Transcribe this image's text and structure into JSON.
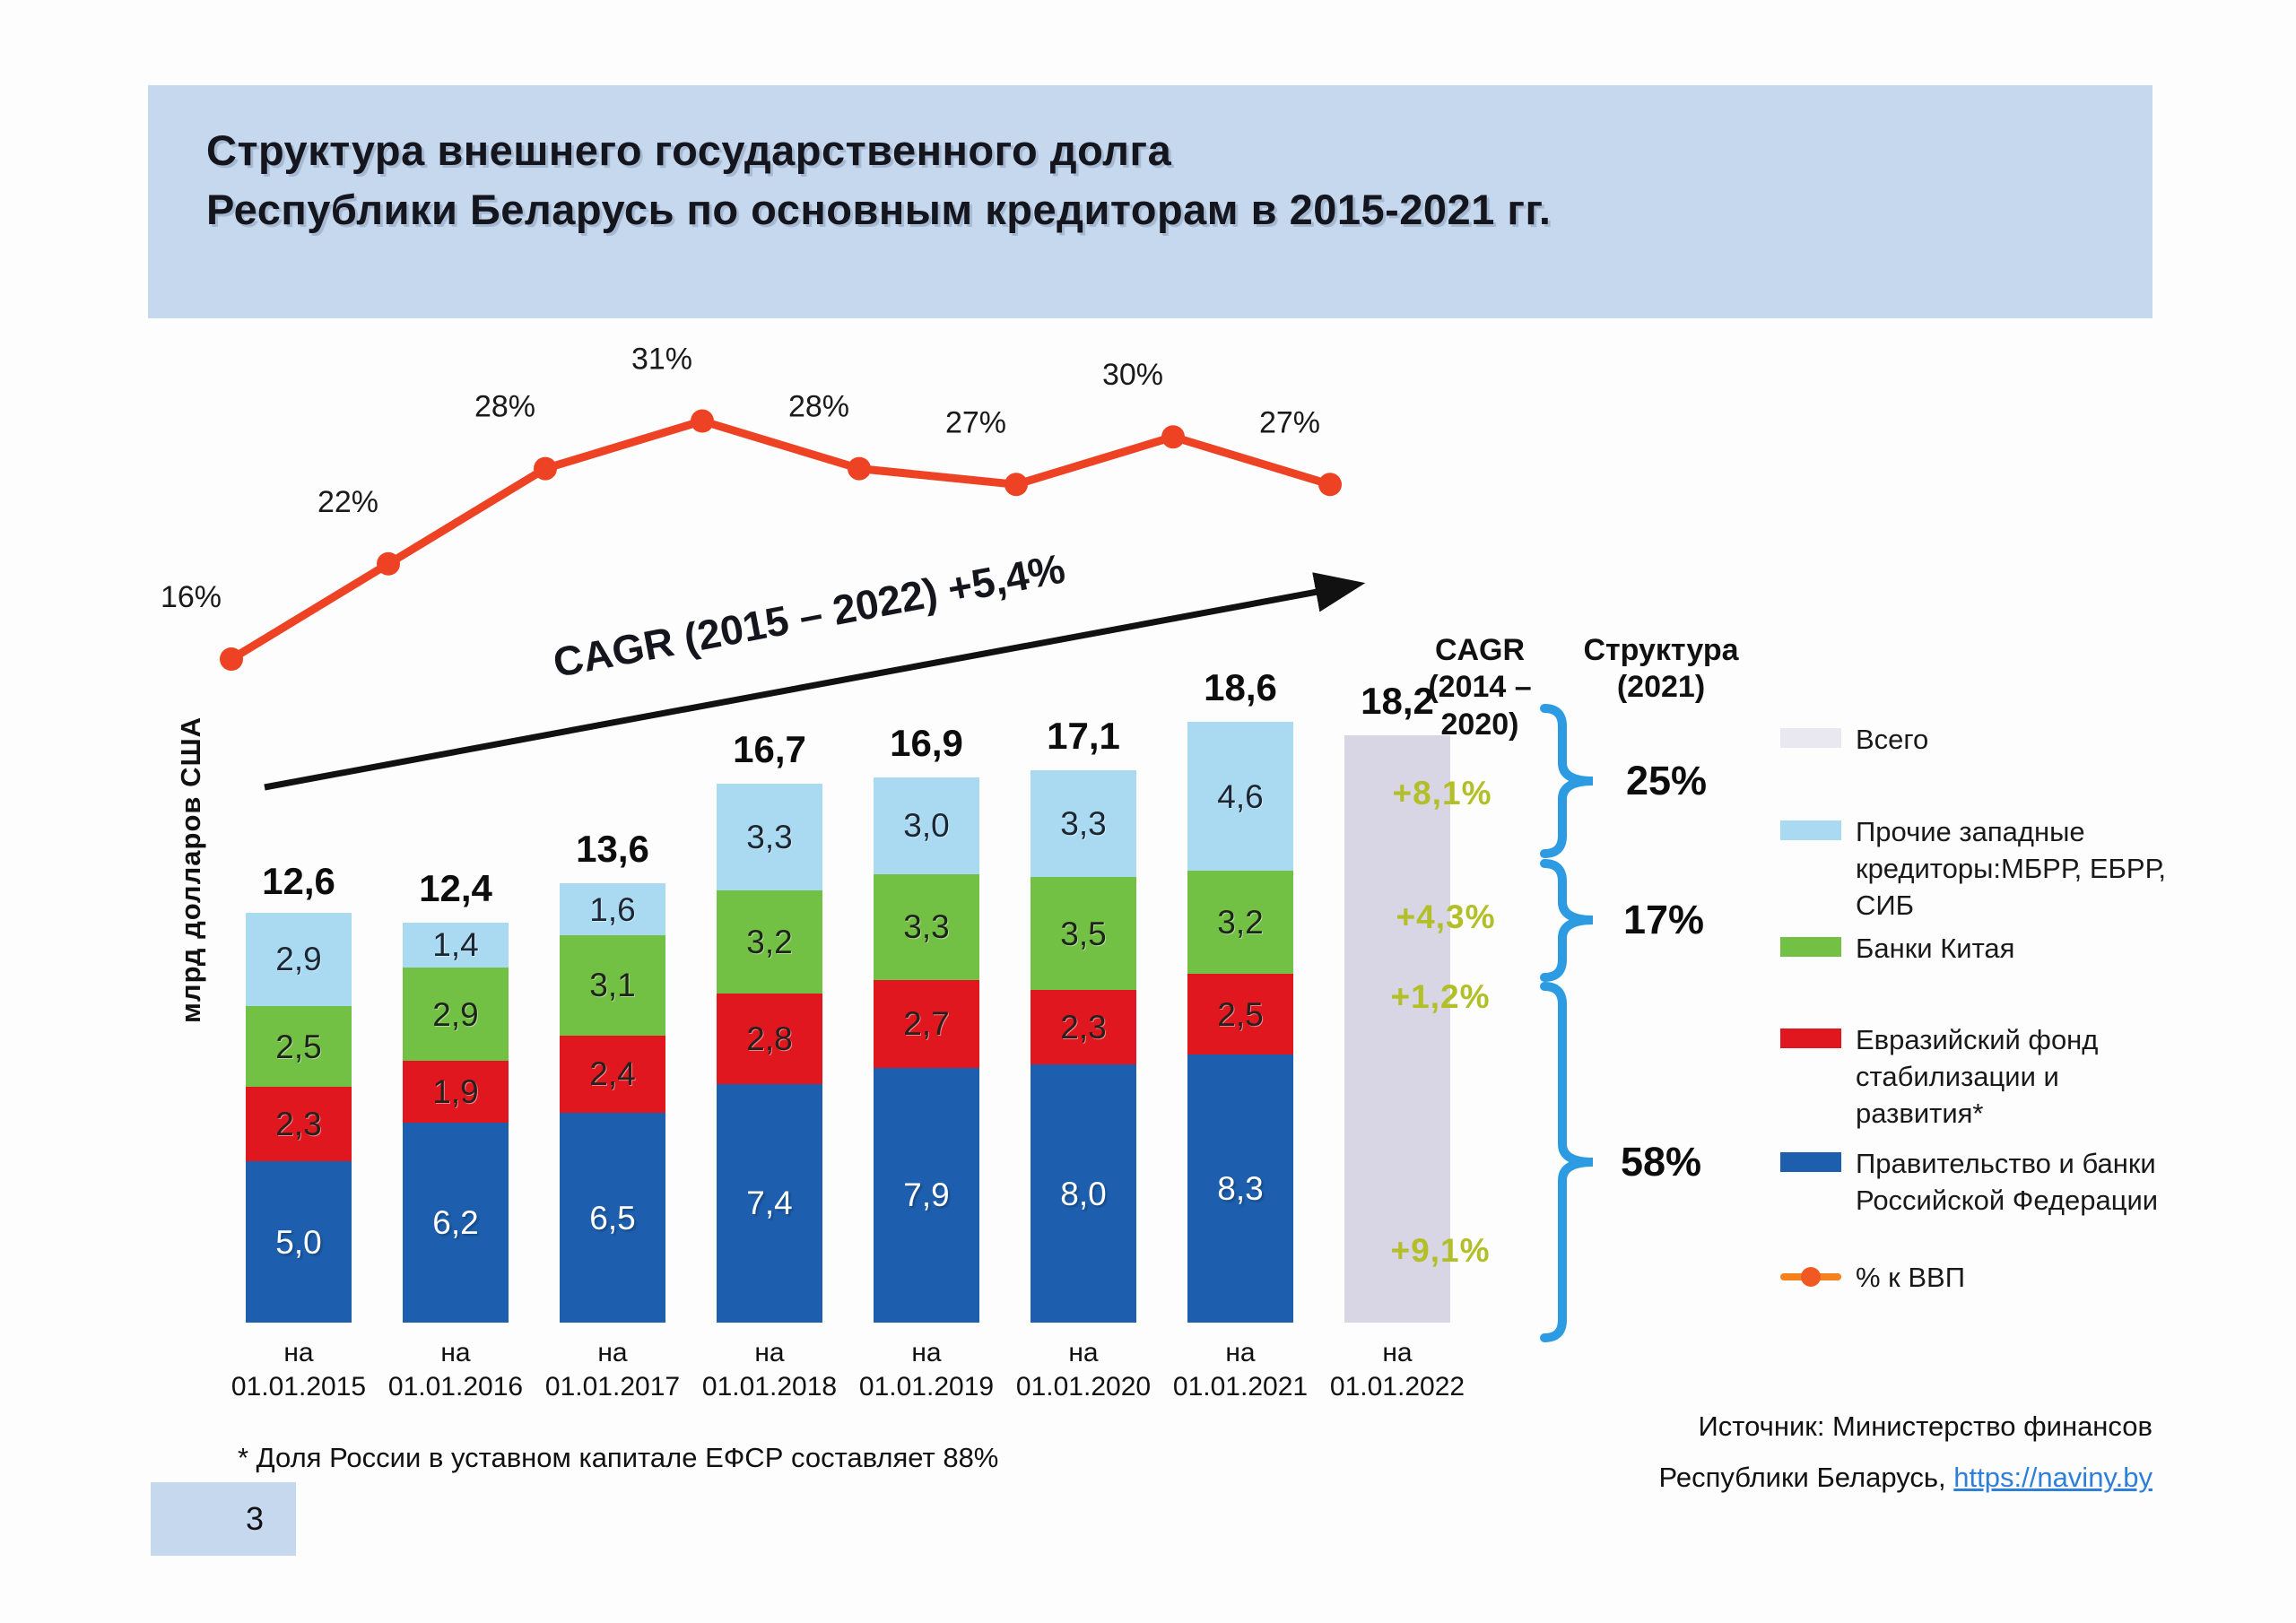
{
  "slide": {
    "title_line1": "Структура внешнего государственного долга",
    "title_line2": "Республики Беларусь по основным кредиторам в 2015-2021 гг.",
    "footnote": "* Доля России в уставном капитале ЕФСР составляет 88%",
    "source_line1": "Источник: Министерство финансов",
    "source_line2_prefix": "Республики Беларусь, ",
    "source_link": "https://naviny.by",
    "page_number": "3"
  },
  "chart_data": {
    "type": "bar",
    "stacked": true,
    "title": "Структура внешнего государственного долга Республики Беларусь по основным кредиторам в 2015-2021 гг.",
    "ylabel": "млрд долларов США",
    "ylim": [
      0,
      20
    ],
    "grid": false,
    "legend_position": "right",
    "x_prefix": "на",
    "categories": [
      "01.01.2015",
      "01.01.2016",
      "01.01.2017",
      "01.01.2018",
      "01.01.2019",
      "01.01.2020",
      "01.01.2021",
      "01.01.2022"
    ],
    "series": [
      {
        "name": "Правительство и банки Российской Федерации",
        "color": "#1d5fae",
        "text_color": "#ffffff",
        "values": [
          5.0,
          6.2,
          6.5,
          7.4,
          7.9,
          8.0,
          8.3
        ],
        "labels": [
          "5,0",
          "6,2",
          "6,5",
          "7,4",
          "7,9",
          "8,0",
          "8,3"
        ]
      },
      {
        "name": "Евразийский фонд стабилизации и развития*",
        "color": "#e0171e",
        "text_color": "#27201f",
        "values": [
          2.3,
          1.9,
          2.4,
          2.8,
          2.7,
          2.3,
          2.5
        ],
        "labels": [
          "2,3",
          "1,9",
          "2,4",
          "2,8",
          "2,7",
          "2,3",
          "2,5"
        ]
      },
      {
        "name": "Банки Китая",
        "color": "#72c044",
        "text_color": "#1d2418",
        "values": [
          2.5,
          2.9,
          3.1,
          3.2,
          3.3,
          3.5,
          3.2
        ],
        "labels": [
          "2,5",
          "2,9",
          "3,1",
          "3,2",
          "3,3",
          "3,5",
          "3,2"
        ]
      },
      {
        "name": "Прочие западные кредиторы:МБРР, ЕБРР, СИБ",
        "color": "#a9daf2",
        "text_color": "#1c2733",
        "values": [
          2.9,
          1.4,
          1.6,
          3.3,
          3.0,
          3.3,
          4.6
        ],
        "labels": [
          "2,9",
          "1,4",
          "1,6",
          "3,3",
          "3,0",
          "3,3",
          "4,6"
        ]
      }
    ],
    "totals_num": [
      12.6,
      12.4,
      13.6,
      16.7,
      16.9,
      17.1,
      18.6,
      18.2
    ],
    "totals": [
      "12,6",
      "12,4",
      "13,6",
      "16,7",
      "16,9",
      "17,1",
      "18,6",
      "18,2"
    ],
    "total_bar": {
      "category": "01.01.2022",
      "value": 18.2,
      "label": "18,2",
      "color": "#d8d6e4",
      "series_name": "Всего"
    },
    "line_series": {
      "name": "% к ВВП",
      "color": "#ee4224",
      "values": [
        16,
        22,
        28,
        31,
        28,
        27,
        30,
        27
      ],
      "labels": [
        "16%",
        "22%",
        "28%",
        "31%",
        "28%",
        "27%",
        "30%",
        "27%"
      ]
    },
    "cagr_arrow_label": "CAGR (2015 – 2022)  +5,4%",
    "right_panel": {
      "cagr_header_lines": [
        "CAGR",
        "(2014 –",
        "2020)"
      ],
      "structure_header_lines": [
        "Структура",
        "(2021)"
      ],
      "cagr_values": [
        "+8,1%",
        "+4,3%",
        "+1,2%",
        "+9,1%"
      ],
      "structure_values": [
        "25%",
        "17%",
        "58%"
      ],
      "brace_color": "#2c9be2",
      "cagr_value_color": "#b3bf27"
    },
    "legend": [
      {
        "label": "Всего",
        "swatch": "box",
        "color": "#e9e7f0"
      },
      {
        "label": "Прочие западные кредиторы:МБРР, ЕБРР, СИБ",
        "swatch": "box",
        "color": "#a9daf2"
      },
      {
        "label": "Банки Китая",
        "swatch": "box",
        "color": "#72c044"
      },
      {
        "label": "Евразийский фонд стабилизации и развития*",
        "swatch": "box",
        "color": "#e0171e"
      },
      {
        "label": "Правительство и банки Российской Федерации",
        "swatch": "box",
        "color": "#1d5fae"
      },
      {
        "label": "% к ВВП",
        "swatch": "line-dot",
        "color": "#f6821f"
      }
    ]
  }
}
